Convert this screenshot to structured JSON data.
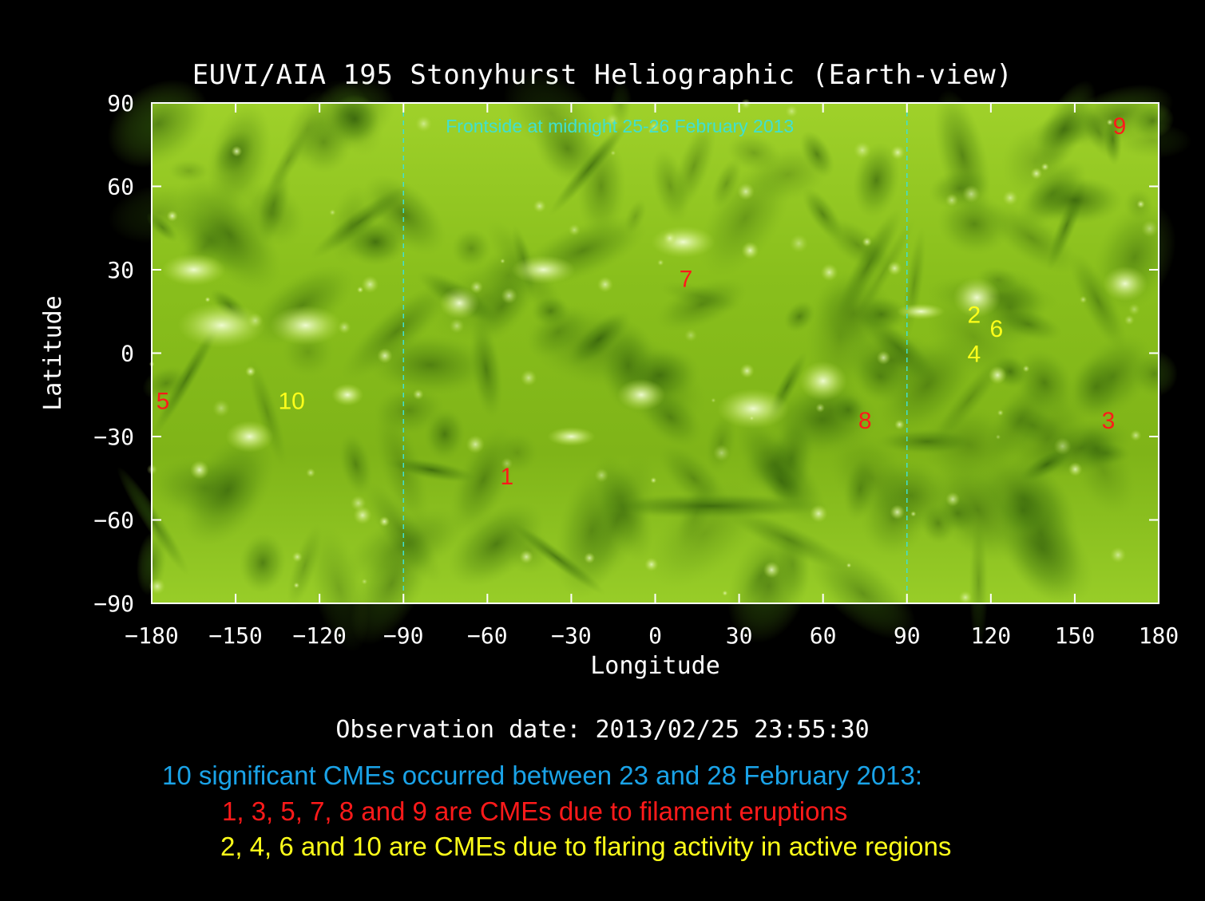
{
  "chart_data": {
    "type": "scatter",
    "title": "EUVI/AIA 195 Stonyhurst Heliographic (Earth-view)",
    "xlabel": "Longitude",
    "ylabel": "Latitude",
    "xlim": [
      -180,
      180
    ],
    "ylim": [
      -90,
      90
    ],
    "xticks": [
      -180,
      -150,
      -120,
      -90,
      -60,
      -30,
      0,
      30,
      60,
      90,
      120,
      150,
      180
    ],
    "yticks": [
      90,
      60,
      30,
      0,
      -30,
      -60,
      -90
    ],
    "frontside_bounds": [
      -90,
      90
    ],
    "frontside_label": "Frontside at midnight 25-26 February 2013",
    "observation_date": "Observation date: 2013/02/25 23:55:30",
    "series": [
      {
        "name": "CMEs due to filament eruptions",
        "color": "#ff1a1a",
        "points": [
          {
            "label": "1",
            "x": -53,
            "y": -44
          },
          {
            "label": "3",
            "x": 162,
            "y": -24
          },
          {
            "label": "5",
            "x": -176,
            "y": -17
          },
          {
            "label": "7",
            "x": 11,
            "y": 27
          },
          {
            "label": "8",
            "x": 75,
            "y": -24
          },
          {
            "label": "9",
            "x": 166,
            "y": 82
          }
        ]
      },
      {
        "name": "CMEs due to flaring activity in active regions",
        "color": "#ffff1a",
        "points": [
          {
            "label": "2",
            "x": 114,
            "y": 14
          },
          {
            "label": "4",
            "x": 114,
            "y": 0
          },
          {
            "label": "6",
            "x": 122,
            "y": 9
          },
          {
            "label": "10",
            "x": -130,
            "y": -17
          }
        ]
      }
    ],
    "grid": false,
    "legend": "none"
  },
  "captions": {
    "line1": "10 significant CMEs occurred between 23 and 28 February 2013:",
    "line2": "1, 3, 5, 7, 8 and 9 are CMEs due to filament eruptions",
    "line3": "2, 4, 6 and 10 are CMEs due to flaring activity in active regions"
  },
  "colors": {
    "background": "#000000",
    "map_green": "#8dc21e",
    "frontside_line": "#40e0d0",
    "axis": "#ffffff"
  }
}
